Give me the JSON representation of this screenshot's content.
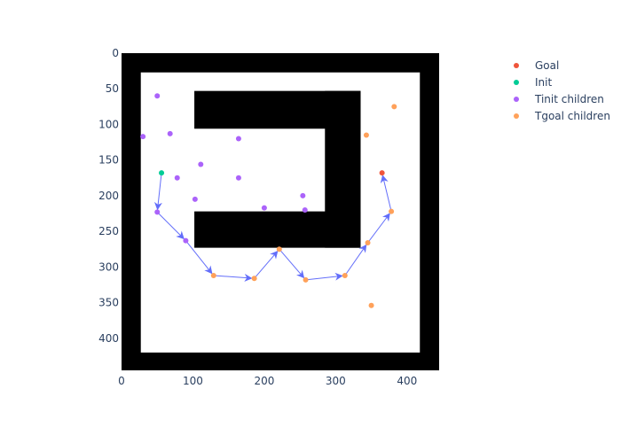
{
  "chart_data": {
    "type": "scatter",
    "title": "",
    "xlabel": "",
    "ylabel": "",
    "xlim": [
      0,
      445
    ],
    "ylim": [
      445,
      0
    ],
    "y_reversed": true,
    "x_ticks": [
      0,
      100,
      200,
      300,
      400
    ],
    "y_ticks": [
      0,
      50,
      100,
      150,
      200,
      250,
      300,
      350,
      400
    ],
    "grid": false,
    "legend_position": "top-right",
    "obstacles": [
      {
        "name": "border-top",
        "x0": 0,
        "y0": 0,
        "x1": 445,
        "y1": 27,
        "color": "#000000"
      },
      {
        "name": "border-bottom",
        "x0": 0,
        "y0": 420,
        "x1": 445,
        "y1": 445,
        "color": "#000000"
      },
      {
        "name": "border-left",
        "x0": 0,
        "y0": 0,
        "x1": 27,
        "y1": 445,
        "color": "#000000"
      },
      {
        "name": "border-right",
        "x0": 418,
        "y0": 0,
        "x1": 445,
        "y1": 445,
        "color": "#000000"
      },
      {
        "name": "c-top-bar",
        "x0": 102,
        "y0": 53,
        "x1": 335,
        "y1": 106,
        "color": "#000000"
      },
      {
        "name": "c-right-bar",
        "x0": 285,
        "y0": 53,
        "x1": 335,
        "y1": 273,
        "color": "#000000"
      },
      {
        "name": "c-bottom-bar",
        "x0": 102,
        "y0": 222,
        "x1": 335,
        "y1": 273,
        "color": "#000000"
      }
    ],
    "series": [
      {
        "name": "Goal",
        "color": "#EF553B",
        "points": [
          {
            "x": 365,
            "y": 168
          }
        ]
      },
      {
        "name": "Init",
        "color": "#00CC96",
        "points": [
          {
            "x": 56,
            "y": 168
          }
        ]
      },
      {
        "name": "Tinit children",
        "color": "#AB63FA",
        "points": [
          {
            "x": 50,
            "y": 60
          },
          {
            "x": 30,
            "y": 117
          },
          {
            "x": 68,
            "y": 113
          },
          {
            "x": 164,
            "y": 120
          },
          {
            "x": 111,
            "y": 156
          },
          {
            "x": 78,
            "y": 175
          },
          {
            "x": 164,
            "y": 175
          },
          {
            "x": 103,
            "y": 205
          },
          {
            "x": 254,
            "y": 200
          },
          {
            "x": 200,
            "y": 217
          },
          {
            "x": 257,
            "y": 220
          },
          {
            "x": 50,
            "y": 223
          },
          {
            "x": 90,
            "y": 263
          }
        ]
      },
      {
        "name": "Tgoal children",
        "color": "#FFA15A",
        "points": [
          {
            "x": 382,
            "y": 75
          },
          {
            "x": 343,
            "y": 115
          },
          {
            "x": 378,
            "y": 222
          },
          {
            "x": 345,
            "y": 266
          },
          {
            "x": 221,
            "y": 275
          },
          {
            "x": 129,
            "y": 312
          },
          {
            "x": 186,
            "y": 316
          },
          {
            "x": 258,
            "y": 318
          },
          {
            "x": 313,
            "y": 312
          },
          {
            "x": 350,
            "y": 354
          }
        ]
      }
    ],
    "path": {
      "color": "#636EFA",
      "points": [
        {
          "x": 56,
          "y": 168
        },
        {
          "x": 50,
          "y": 223
        },
        {
          "x": 90,
          "y": 263
        },
        {
          "x": 129,
          "y": 312
        },
        {
          "x": 186,
          "y": 316
        },
        {
          "x": 221,
          "y": 275
        },
        {
          "x": 258,
          "y": 318
        },
        {
          "x": 313,
          "y": 312
        },
        {
          "x": 345,
          "y": 266
        },
        {
          "x": 378,
          "y": 222
        },
        {
          "x": 365,
          "y": 168
        }
      ]
    }
  }
}
